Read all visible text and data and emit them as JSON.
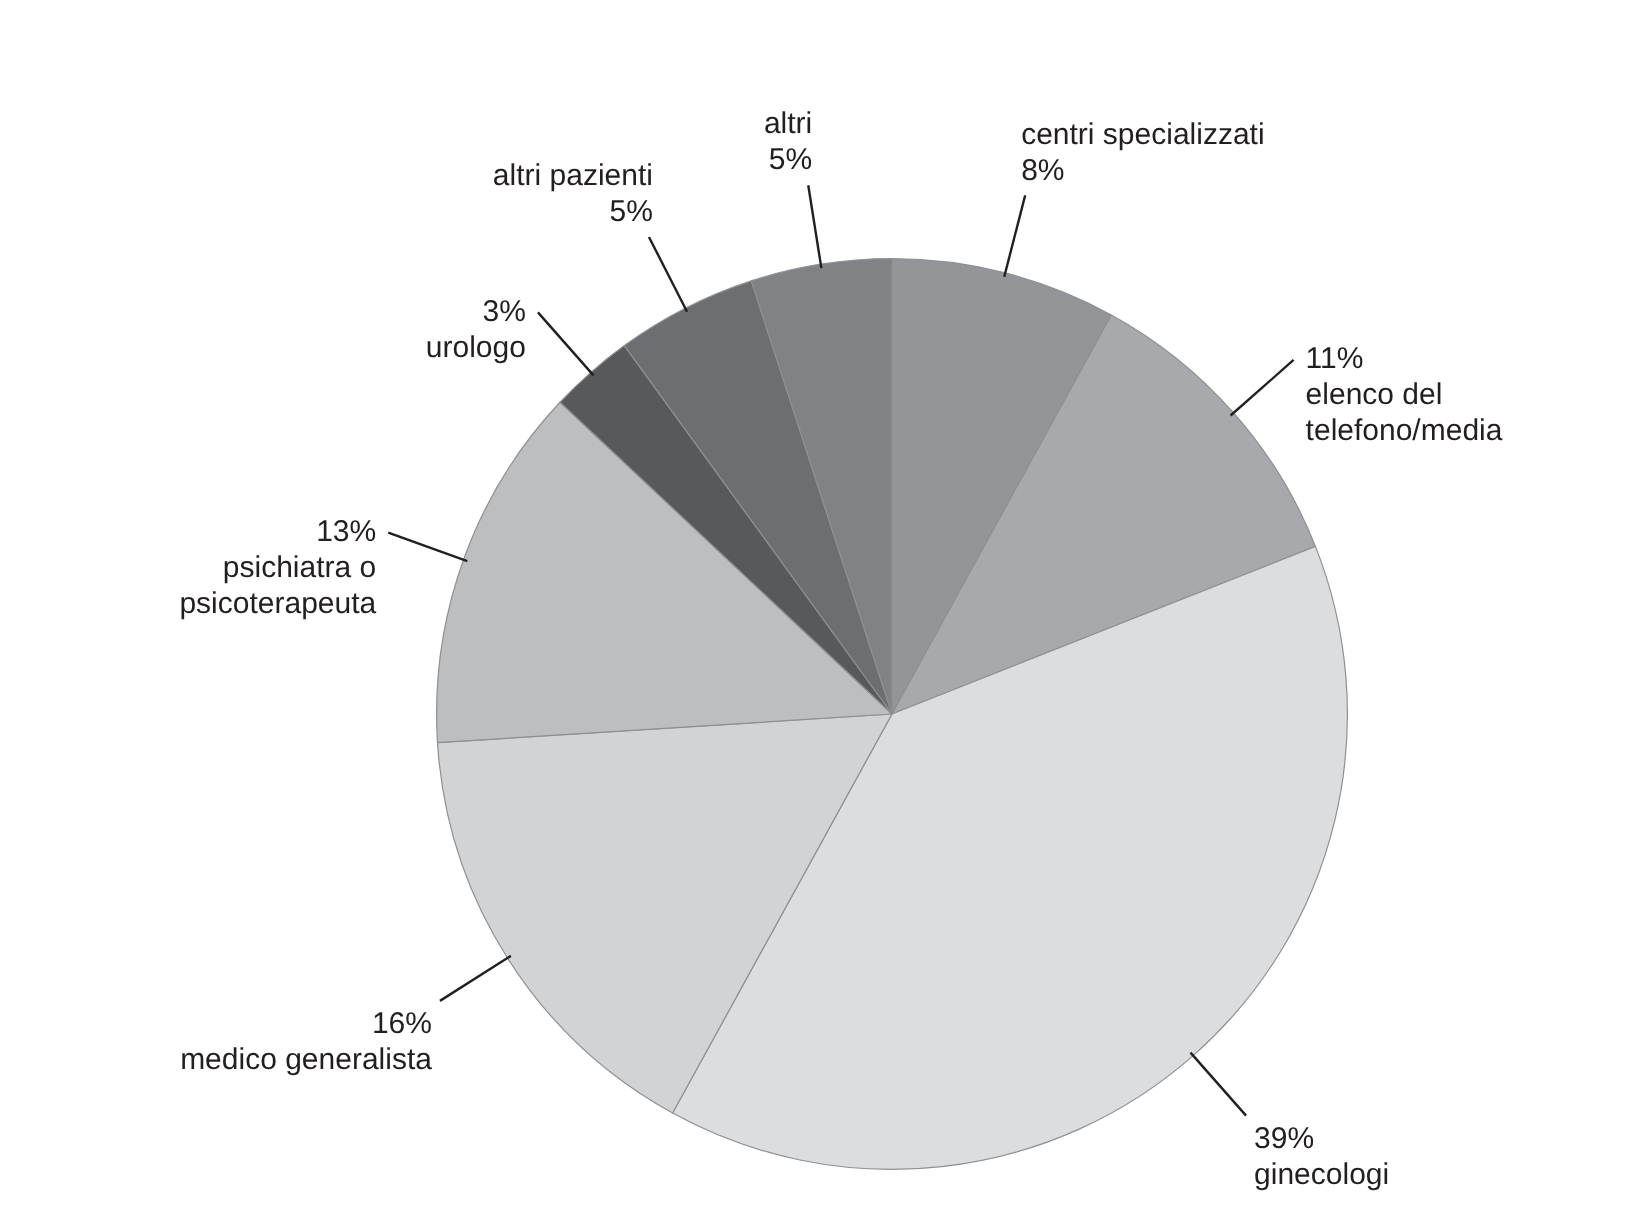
{
  "chart_data": {
    "type": "pie",
    "categories": [
      "centri specializzati",
      "elenco del telefono/media",
      "ginecologi",
      "medico generalista",
      "psichiatra o psicoterapeuta",
      "urologo",
      "altri pazienti",
      "altri"
    ],
    "values": [
      8,
      11,
      39,
      16,
      13,
      3,
      5,
      5
    ],
    "value_labels": [
      "8%",
      "11%",
      "39%",
      "16%",
      "13%",
      "3%",
      "5%",
      "5%"
    ],
    "colors": [
      "#939598",
      "#a7a9ac",
      "#dcdddf",
      "#d1d3d4",
      "#bcbec0",
      "#58595b",
      "#6d6e71",
      "#808285"
    ]
  }
}
